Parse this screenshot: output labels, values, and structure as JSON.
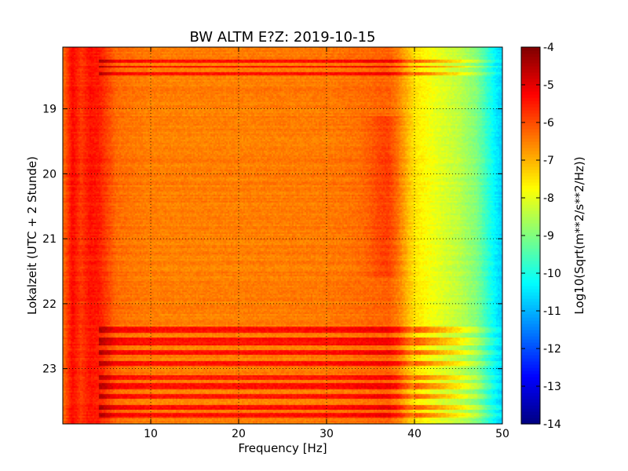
{
  "chart_data": {
    "type": "heatmap",
    "title": "BW ALTM E?Z: 2019-10-15",
    "xlabel": "Frequency [Hz]",
    "ylabel": "Lokalzeit (UTC + 2 Stunde)",
    "colorbar_label": "Log10(Sqrt(m**2/s**2/Hz))",
    "xlim": [
      0,
      50
    ],
    "ylim": [
      18.05,
      23.85
    ],
    "y_inverted": true,
    "x_ticks": [
      "10",
      "20",
      "30",
      "40",
      "50"
    ],
    "x_tick_values": [
      10,
      20,
      30,
      40,
      50
    ],
    "y_ticks": [
      "19",
      "20",
      "21",
      "22",
      "23"
    ],
    "y_tick_values": [
      19,
      20,
      21,
      22,
      23
    ],
    "colorbar_range": [
      -14,
      -4
    ],
    "colorbar_ticks": [
      "-4",
      "-5",
      "-6",
      "-7",
      "-8",
      "-9",
      "-10",
      "-11",
      "-12",
      "-13",
      "-14"
    ],
    "colorbar_tick_values": [
      -4,
      -5,
      -6,
      -7,
      -8,
      -9,
      -10,
      -11,
      -12,
      -13,
      -14
    ],
    "colormap": "jet",
    "grid": true,
    "spectral_profile": {
      "freq_hz": [
        0,
        1,
        2,
        3,
        4,
        6,
        10,
        20,
        30,
        35,
        37,
        38,
        40,
        42,
        45,
        47,
        49,
        50
      ],
      "log10_amplitude": [
        -6.3,
        -5.3,
        -5.8,
        -5.4,
        -5.5,
        -6.3,
        -6.5,
        -6.5,
        -6.45,
        -6.3,
        -6.2,
        -6.5,
        -7.5,
        -7.9,
        -8.4,
        -9.0,
        -10.3,
        -10.8
      ]
    },
    "high_noise_bands": [
      {
        "start": 18.22,
        "end": 18.27,
        "level": -5.0
      },
      {
        "start": 18.32,
        "end": 18.36,
        "level": -5.6
      },
      {
        "start": 18.42,
        "end": 18.47,
        "level": -5.2
      },
      {
        "start": 22.35,
        "end": 22.43,
        "level": -5.4
      },
      {
        "start": 22.52,
        "end": 22.62,
        "level": -5.0
      },
      {
        "start": 22.7,
        "end": 22.78,
        "level": -5.3
      },
      {
        "start": 22.88,
        "end": 22.95,
        "level": -5.5
      },
      {
        "start": 23.1,
        "end": 23.16,
        "level": -5.6
      },
      {
        "start": 23.2,
        "end": 23.3,
        "level": -4.9
      },
      {
        "start": 23.38,
        "end": 23.45,
        "level": -5.3
      },
      {
        "start": 23.55,
        "end": 23.62,
        "level": -5.6
      },
      {
        "start": 23.68,
        "end": 23.75,
        "level": -5.2
      }
    ]
  }
}
